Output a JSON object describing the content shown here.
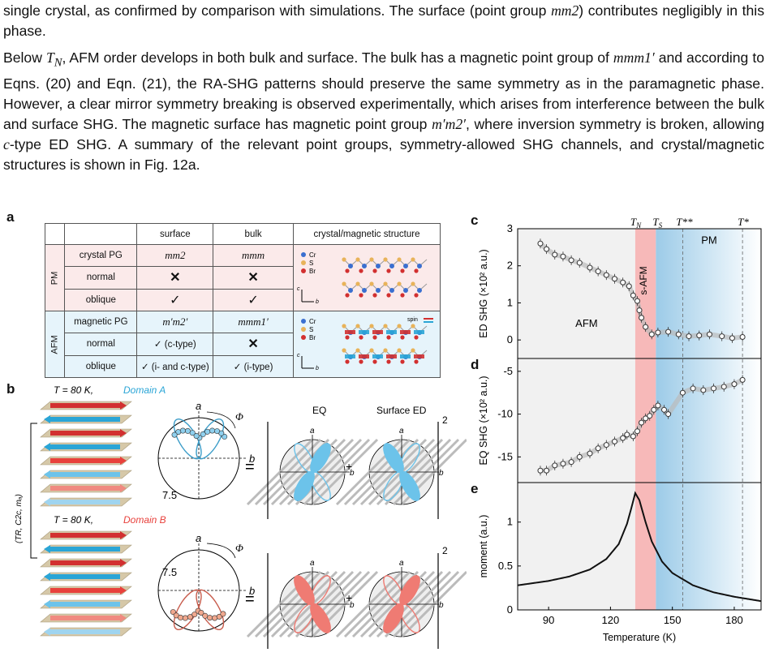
{
  "text": {
    "p1": "single crystal, as confirmed by comparison with simulations. The surface (point group mm2) contributes negligibly in this phase.",
    "p1_a": "single crystal, as confirmed by comparison with simulations. The surface (point group ",
    "p1_sym": "mm2",
    "p1_b": ") contributes negligibly in this phase.",
    "p2_a": "Below ",
    "p2_tn": "T",
    "p2_tn_sub": "N",
    "p2_b": ", AFM order develops in both bulk and surface. The bulk has a magnetic point group of ",
    "p2_sym1": "mmm1′",
    "p2_c": " and according to Eqns. (20) and Eqn. (21), the RA-SHG patterns should preserve the same symmetry as in the paramagnetic phase. However, a clear mirror symmetry breaking is observed experimentally, which arises from interference between the bulk and surface SHG. The magnetic surface has magnetic point group ",
    "p2_sym2": "m′m2′",
    "p2_d": ", where inversion symmetry is broken, allowing ",
    "p2_c_type": "c",
    "p2_e": "-type ED SHG. A summary of the relevant point groups, symmetry-allowed SHG channels, and crystal/magnetic structures is shown in Fig. 12a."
  },
  "panel_labels": {
    "a": "a",
    "b": "b",
    "c": "c",
    "d": "d",
    "e": "e"
  },
  "table": {
    "headers": [
      "",
      "",
      "surface",
      "bulk",
      "crystal/magnetic structure"
    ],
    "groups": [
      "PM",
      "AFM"
    ],
    "pm_rows": [
      {
        "label": "crystal PG",
        "surface": "mm2",
        "bulk": "mmm"
      },
      {
        "label": "normal",
        "surface": "✕",
        "bulk": "✕"
      },
      {
        "label": "oblique",
        "surface": "✓",
        "bulk": "✓"
      }
    ],
    "afm_rows": [
      {
        "label": "magnetic PG",
        "surface": "m′m2′",
        "bulk": "mmm1′"
      },
      {
        "label": "normal",
        "surface": "✓ (c-type)",
        "bulk": "✕"
      },
      {
        "label": "oblique",
        "surface": "✓ (i- and c-type)",
        "bulk": "✓ (i-type)"
      }
    ],
    "legend": [
      "Cr",
      "S",
      "Br"
    ],
    "axis_c": "c",
    "axis_b": "b",
    "spin": "spin"
  },
  "panel_b": {
    "domain_a_prefix": "T = 80 K, ",
    "domain_a": "Domain A",
    "domain_b_prefix": "T = 80 K, ",
    "domain_b": "Domain B",
    "symmetry": "(TR, C2c, mₐ)",
    "axis_a": "a",
    "axis_b": "b",
    "phi": "Φ",
    "scale": "7.5",
    "eq_label": "EQ",
    "surface_label": "Surface ED",
    "equals": "=",
    "plus": "+",
    "power": "2"
  },
  "colors": {
    "pm_bg": "#fbeaea",
    "afm_bg": "#e6f4fb",
    "domain_a": "#2aa5d6",
    "domain_b": "#e8413c",
    "lobe_blue": "#6cc3ea",
    "lobe_red": "#ef7b73",
    "band_red": "#f6b8b8",
    "band_blue": "#a8d2ec"
  },
  "chart_data": [
    {
      "type": "scatter",
      "panel": "c",
      "ylabel": "ED SHG (×10² a.u.)",
      "xlim": [
        75,
        193
      ],
      "ylim": [
        -0.5,
        3
      ],
      "yticks": [
        0,
        1,
        2,
        3
      ],
      "annotations": [
        "AFM",
        "PM",
        "s-AFM"
      ],
      "markers": [
        "T_N",
        "T_S",
        "T**",
        "T*"
      ],
      "series": [
        {
          "x": [
            86,
            89,
            93,
            97,
            101,
            105,
            110,
            114,
            118,
            122,
            126,
            129,
            131,
            133,
            134,
            135,
            137,
            140,
            143,
            148,
            153,
            158,
            163,
            168,
            174,
            179,
            184
          ],
          "y": [
            2.6,
            2.45,
            2.3,
            2.25,
            2.15,
            2.08,
            1.95,
            1.85,
            1.75,
            1.65,
            1.55,
            1.45,
            1.2,
            1.05,
            0.8,
            0.6,
            0.35,
            0.15,
            0.2,
            0.22,
            0.15,
            0.1,
            0.12,
            0.15,
            0.1,
            0.05,
            0.08
          ]
        }
      ]
    },
    {
      "type": "scatter",
      "panel": "d",
      "ylabel": "EQ SHG (×10² a.u.)",
      "xlim": [
        75,
        193
      ],
      "ylim": [
        -18,
        -3.5
      ],
      "yticks": [
        -15,
        -10,
        -5
      ],
      "series": [
        {
          "x": [
            86,
            89,
            93,
            97,
            101,
            105,
            110,
            114,
            118,
            122,
            126,
            128,
            131,
            133,
            135,
            137,
            139,
            141,
            143,
            146,
            148,
            155,
            160,
            165,
            170,
            175,
            180,
            184
          ],
          "y": [
            -16.6,
            -16.6,
            -16.0,
            -15.8,
            -15.6,
            -15.0,
            -14.6,
            -14.0,
            -13.6,
            -13.2,
            -12.8,
            -12.4,
            -12.6,
            -12.0,
            -11.0,
            -10.5,
            -10.2,
            -9.5,
            -9.0,
            -9.5,
            -10.0,
            -7.5,
            -7.0,
            -7.2,
            -7.0,
            -6.8,
            -6.5,
            -6.0
          ]
        }
      ]
    },
    {
      "type": "line",
      "panel": "e",
      "ylabel": "moment (a.u.)",
      "xlabel": "Temperature (K)",
      "xlim": [
        75,
        193
      ],
      "ylim": [
        0,
        1.45
      ],
      "yticks": [
        0,
        0.5,
        1.0
      ],
      "xticks": [
        90,
        120,
        150,
        180
      ],
      "series": [
        {
          "x": [
            75,
            90,
            100,
            110,
            118,
            124,
            128,
            130,
            132,
            134,
            137,
            140,
            145,
            150,
            160,
            170,
            180,
            193
          ],
          "y": [
            0.28,
            0.33,
            0.38,
            0.46,
            0.58,
            0.75,
            0.98,
            1.15,
            1.33,
            1.25,
            1.0,
            0.78,
            0.55,
            0.42,
            0.28,
            0.2,
            0.15,
            0.1
          ]
        }
      ]
    }
  ]
}
